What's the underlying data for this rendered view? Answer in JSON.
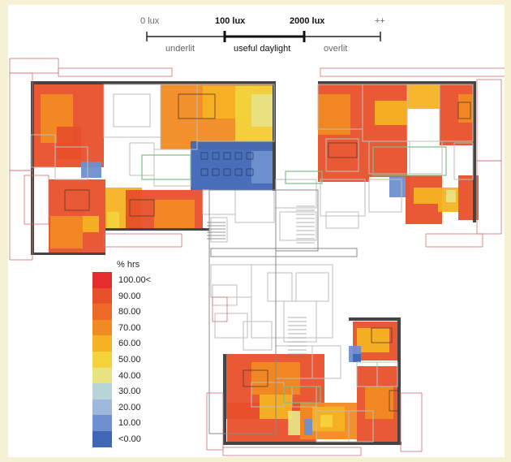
{
  "scale": {
    "ticks": [
      "0 lux",
      "100 lux",
      "2000 lux",
      "++"
    ],
    "bands": [
      "underlit",
      "useful daylight",
      "overlit"
    ]
  },
  "legend": {
    "title": "% hrs",
    "entries": [
      {
        "label": "100.00<",
        "color": "#e52d2d"
      },
      {
        "label": "90.00",
        "color": "#e8502b"
      },
      {
        "label": "80.00",
        "color": "#ec6a26"
      },
      {
        "label": "70.00",
        "color": "#f08a22"
      },
      {
        "label": "60.00",
        "color": "#f5b224"
      },
      {
        "label": "50.00",
        "color": "#f3d23c"
      },
      {
        "label": "40.00",
        "color": "#e8e283"
      },
      {
        "label": "30.00",
        "color": "#b8d4d8"
      },
      {
        "label": "20.00",
        "color": "#9fb7dd"
      },
      {
        "label": "10.00",
        "color": "#6f90cf"
      },
      {
        "label": "<0.00",
        "color": "#3f67b6"
      }
    ]
  },
  "plan": {
    "wall_color": "#444444",
    "line_color": "#bdbdbd",
    "outline_color": "#d07070",
    "green_color": "#7ac08a",
    "heat_colors": {
      "deep": "#e8502b",
      "mid": "#f08a22",
      "warm": "#f5b224",
      "yellow": "#f3d23c",
      "pale": "#e8e283",
      "blue": "#3f67b6",
      "lightblue": "#6f90cf"
    }
  }
}
